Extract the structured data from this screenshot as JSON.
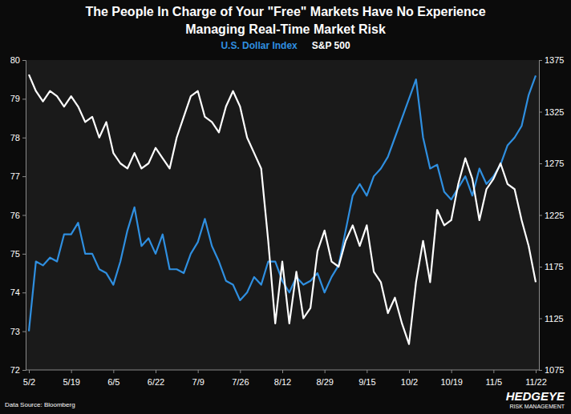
{
  "chart_data": {
    "type": "line",
    "title": [
      "The People In Charge of Your \"Free\" Markets Have No Experience",
      "Managing Real-Time Market Risk"
    ],
    "categories": [
      "5/2",
      null,
      null,
      null,
      null,
      null,
      "5/19",
      null,
      null,
      null,
      null,
      null,
      "6/5",
      null,
      null,
      null,
      null,
      null,
      "6/22",
      null,
      null,
      null,
      null,
      null,
      "7/9",
      null,
      null,
      null,
      null,
      null,
      "7/26",
      null,
      null,
      null,
      null,
      null,
      "8/12",
      null,
      null,
      null,
      null,
      null,
      "8/29",
      null,
      null,
      null,
      null,
      null,
      "9/15",
      null,
      null,
      null,
      null,
      null,
      "10/2",
      null,
      null,
      null,
      null,
      null,
      "10/19",
      null,
      null,
      null,
      null,
      null,
      "11/5",
      null,
      null,
      null,
      null,
      null,
      "11/22"
    ],
    "series": [
      {
        "name": "U.S. Dollar Index",
        "color": "#2f8fe0",
        "axis": "y",
        "values": [
          73.0,
          74.8,
          74.7,
          74.9,
          74.8,
          75.5,
          75.5,
          75.8,
          75.0,
          75.0,
          74.6,
          74.5,
          74.2,
          74.8,
          75.6,
          76.2,
          75.2,
          75.4,
          75.0,
          75.5,
          74.6,
          74.6,
          74.5,
          75.0,
          75.3,
          75.9,
          75.2,
          74.8,
          74.3,
          74.2,
          73.8,
          74.0,
          74.4,
          74.2,
          74.8,
          74.8,
          74.3,
          74.0,
          74.4,
          74.2,
          74.3,
          74.5,
          74.0,
          74.4,
          74.7,
          75.6,
          76.5,
          76.8,
          76.5,
          77.0,
          77.2,
          77.5,
          78.0,
          78.5,
          79.0,
          79.5,
          78.0,
          77.2,
          77.3,
          76.6,
          76.4,
          76.7,
          77.0,
          76.5,
          77.2,
          76.8,
          77.0,
          77.3,
          77.8,
          78.0,
          78.3,
          79.1,
          79.6
        ]
      },
      {
        "name": "S&P 500",
        "color": "#ffffff",
        "axis": "y2",
        "values": [
          1361,
          1345,
          1335,
          1345,
          1340,
          1330,
          1340,
          1330,
          1315,
          1320,
          1300,
          1315,
          1285,
          1275,
          1270,
          1285,
          1270,
          1275,
          1290,
          1280,
          1270,
          1300,
          1320,
          1340,
          1345,
          1320,
          1315,
          1305,
          1330,
          1345,
          1330,
          1300,
          1285,
          1270,
          1200,
          1120,
          1180,
          1120,
          1170,
          1125,
          1135,
          1190,
          1210,
          1180,
          1175,
          1200,
          1215,
          1195,
          1215,
          1170,
          1160,
          1130,
          1145,
          1120,
          1100,
          1160,
          1200,
          1160,
          1230,
          1215,
          1220,
          1255,
          1280,
          1260,
          1220,
          1250,
          1260,
          1275,
          1255,
          1250,
          1220,
          1195,
          1160
        ]
      }
    ],
    "ylim": [
      72,
      80
    ],
    "yticks": [
      72,
      73,
      74,
      75,
      76,
      77,
      78,
      79,
      80
    ],
    "y2lim": [
      1075,
      1375
    ],
    "y2ticks": [
      1075,
      1125,
      1175,
      1225,
      1275,
      1325,
      1375
    ],
    "grid": false,
    "legend": "top",
    "annotations": [
      "Data Source: Bloomberg",
      "HEDGEYE",
      "RISK MANAGEMENT"
    ]
  }
}
